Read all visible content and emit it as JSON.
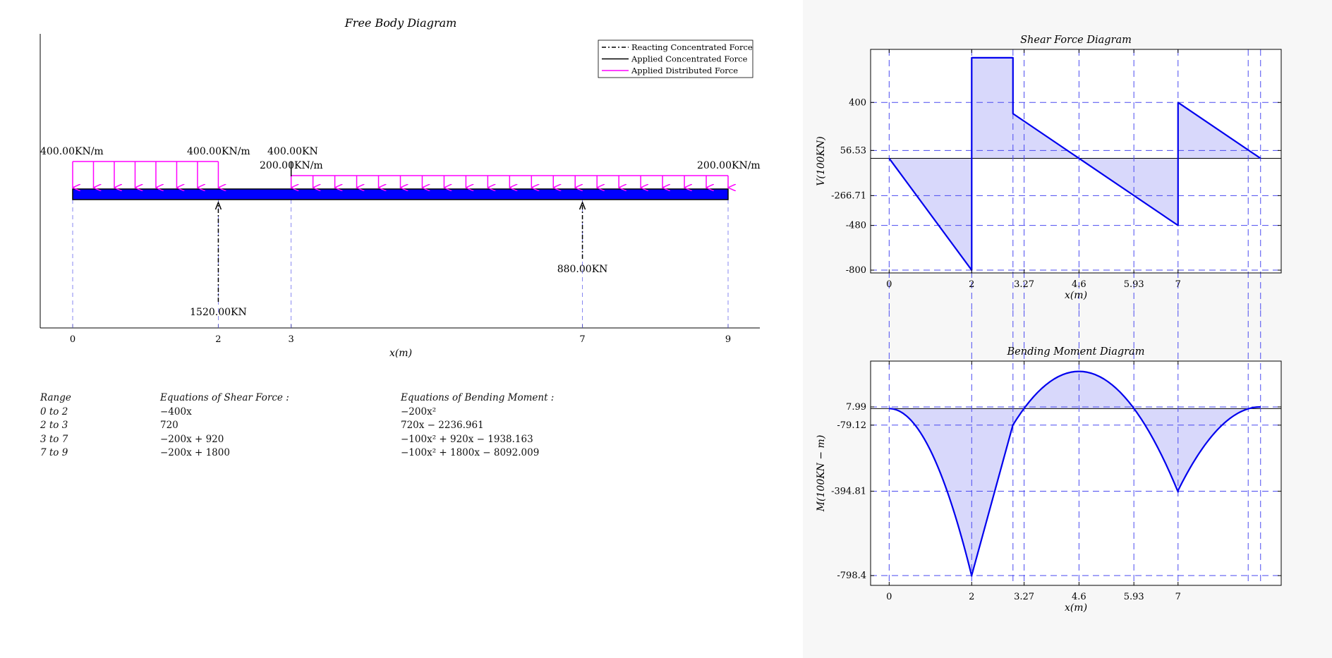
{
  "fbd": {
    "title": "Free Body Diagram",
    "xlabel": "x(m)",
    "x_ticks": [
      "0",
      "2",
      "3",
      "7",
      "9"
    ],
    "legend": [
      {
        "label": "Reacting Concentrated Force",
        "style": "dashdot",
        "color": "#000000"
      },
      {
        "label": "Applied Concentrated Force",
        "style": "solid",
        "color": "#000000"
      },
      {
        "label": "Applied Distributed Force",
        "style": "solid",
        "color": "#ff00ff"
      }
    ],
    "beam": {
      "start": 0,
      "end": 9,
      "color": "#0000ff"
    },
    "distributed_loads": [
      {
        "from": 0,
        "to": 2,
        "start_label": "400.00KN/m",
        "end_label": "400.00KN/m",
        "arrows": 7
      },
      {
        "from": 3,
        "to": 9,
        "start_label": "200.00KN/m",
        "end_label": "200.00KN/m",
        "arrows": 20
      }
    ],
    "applied_forces": [
      {
        "x": 3,
        "label": "400.00KN"
      }
    ],
    "reactions": [
      {
        "x": 2,
        "label": "1520.00KN"
      },
      {
        "x": 7,
        "label": "880.00KN"
      }
    ]
  },
  "equations": {
    "headers": [
      "Range",
      "Equations of Shear Force :",
      "Equations of Bending Moment :"
    ],
    "rows": [
      {
        "range": "0 to 2",
        "shear": "−400x",
        "moment": "−200x²"
      },
      {
        "range": "2 to 3",
        "shear": "720",
        "moment": "720x − 2236.961"
      },
      {
        "range": "3 to 7",
        "shear": "−200x + 920",
        "moment": "−100x² + 920x − 1938.163"
      },
      {
        "range": "7 to 9",
        "shear": "−200x + 1800",
        "moment": "−100x² + 1800x − 8092.009"
      }
    ]
  },
  "chart_data": [
    {
      "type": "line",
      "title": "Shear Force Diagram",
      "xlabel": "x(m)",
      "ylabel": "V(100KN)",
      "x_ticks": [
        0,
        2,
        3.27,
        4.6,
        5.93,
        7
      ],
      "y_ticks": [
        400,
        56.53,
        -266.71,
        -480,
        -800
      ],
      "xlim": [
        -0.45,
        9.5
      ],
      "ylim": [
        -820,
        780
      ],
      "x_gridlines": [
        0,
        2,
        3,
        3.27,
        4.6,
        5.93,
        7,
        8.7,
        9
      ],
      "x": [
        0,
        2,
        2,
        3,
        3,
        7,
        7,
        9
      ],
      "y": [
        0,
        -800,
        720,
        720,
        320,
        -480,
        400,
        0
      ],
      "fill_color": "#d8d8fb",
      "line_color": "#0000ee"
    },
    {
      "type": "line",
      "title": "Bending Moment Diagram",
      "xlabel": "x(m)",
      "ylabel": "M(100KN − m)",
      "x_ticks": [
        0,
        2,
        3.27,
        4.6,
        5.93,
        7
      ],
      "y_ticks": [
        7.99,
        -79.12,
        -394.81,
        -798.4
      ],
      "xlim": [
        -0.45,
        9.5
      ],
      "ylim": [
        -845,
        227
      ],
      "x_gridlines": [
        0,
        2,
        3,
        3.27,
        4.6,
        5.93,
        7,
        8.7,
        9
      ],
      "segments": [
        {
          "from": 0,
          "to": 2,
          "a": -200,
          "b": 0,
          "c": 0
        },
        {
          "from": 2,
          "to": 3,
          "a": 0,
          "b": 720,
          "c": -2236.961
        },
        {
          "from": 3,
          "to": 7,
          "a": -100,
          "b": 920,
          "c": -1938.163
        },
        {
          "from": 7,
          "to": 9,
          "a": -100,
          "b": 1800,
          "c": -8092.009
        }
      ],
      "fill_color": "#d8d8fb",
      "line_color": "#0000ee"
    }
  ]
}
